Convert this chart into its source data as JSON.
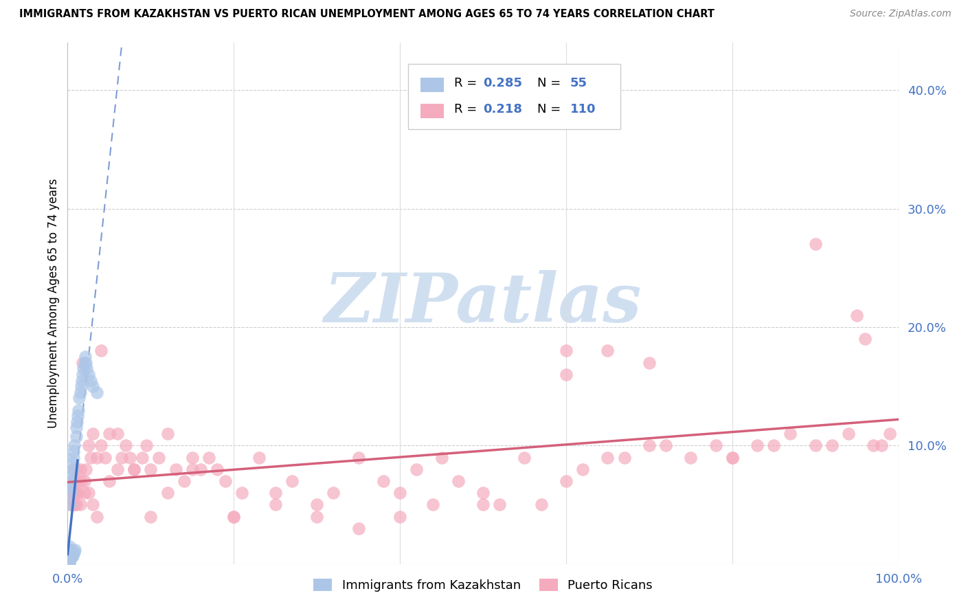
{
  "title": "IMMIGRANTS FROM KAZAKHSTAN VS PUERTO RICAN UNEMPLOYMENT AMONG AGES 65 TO 74 YEARS CORRELATION CHART",
  "source": "Source: ZipAtlas.com",
  "ylabel": "Unemployment Among Ages 65 to 74 years",
  "xlim": [
    0,
    1.0
  ],
  "ylim": [
    0,
    0.44
  ],
  "xticks": [
    0.0,
    1.0
  ],
  "xticklabels": [
    "0.0%",
    "100.0%"
  ],
  "ytick_positions": [
    0.1,
    0.2,
    0.3,
    0.4
  ],
  "ytick_labels": [
    "10.0%",
    "20.0%",
    "30.0%",
    "40.0%"
  ],
  "blue_R": 0.285,
  "blue_N": 55,
  "pink_R": 0.218,
  "pink_N": 110,
  "blue_color": "#adc6e8",
  "pink_color": "#f5abbe",
  "blue_line_color": "#4472c4",
  "pink_line_color": "#d4607a",
  "legend_label_blue": "Immigrants from Kazakhstan",
  "legend_label_pink": "Puerto Ricans",
  "blue_x": [
    0.001,
    0.001,
    0.001,
    0.001,
    0.001,
    0.002,
    0.002,
    0.002,
    0.002,
    0.002,
    0.002,
    0.002,
    0.003,
    0.003,
    0.003,
    0.003,
    0.003,
    0.003,
    0.004,
    0.004,
    0.004,
    0.004,
    0.004,
    0.005,
    0.005,
    0.005,
    0.005,
    0.006,
    0.006,
    0.006,
    0.007,
    0.007,
    0.007,
    0.008,
    0.008,
    0.009,
    0.01,
    0.01,
    0.011,
    0.012,
    0.013,
    0.014,
    0.015,
    0.016,
    0.017,
    0.018,
    0.019,
    0.02,
    0.021,
    0.022,
    0.023,
    0.025,
    0.028,
    0.03,
    0.035
  ],
  "blue_y": [
    0.0,
    0.0,
    0.0,
    0.005,
    0.008,
    0.0,
    0.003,
    0.005,
    0.008,
    0.01,
    0.012,
    0.015,
    0.004,
    0.006,
    0.008,
    0.01,
    0.012,
    0.05,
    0.005,
    0.007,
    0.009,
    0.06,
    0.065,
    0.006,
    0.008,
    0.07,
    0.075,
    0.007,
    0.08,
    0.085,
    0.009,
    0.09,
    0.095,
    0.01,
    0.1,
    0.012,
    0.108,
    0.115,
    0.12,
    0.125,
    0.13,
    0.14,
    0.145,
    0.15,
    0.155,
    0.16,
    0.165,
    0.17,
    0.175,
    0.17,
    0.165,
    0.16,
    0.155,
    0.15,
    0.145
  ],
  "pink_x": [
    0.003,
    0.004,
    0.005,
    0.006,
    0.007,
    0.007,
    0.008,
    0.008,
    0.009,
    0.01,
    0.01,
    0.012,
    0.013,
    0.015,
    0.016,
    0.018,
    0.02,
    0.022,
    0.025,
    0.028,
    0.03,
    0.035,
    0.04,
    0.045,
    0.05,
    0.06,
    0.065,
    0.07,
    0.075,
    0.08,
    0.09,
    0.095,
    0.1,
    0.11,
    0.12,
    0.13,
    0.14,
    0.15,
    0.16,
    0.17,
    0.18,
    0.19,
    0.2,
    0.21,
    0.23,
    0.25,
    0.27,
    0.3,
    0.32,
    0.35,
    0.38,
    0.4,
    0.42,
    0.44,
    0.47,
    0.5,
    0.52,
    0.55,
    0.57,
    0.6,
    0.62,
    0.65,
    0.67,
    0.7,
    0.72,
    0.75,
    0.78,
    0.8,
    0.83,
    0.85,
    0.87,
    0.9,
    0.92,
    0.94,
    0.96,
    0.97,
    0.98,
    0.99,
    0.005,
    0.006,
    0.008,
    0.01,
    0.015,
    0.02,
    0.025,
    0.03,
    0.035,
    0.04,
    0.05,
    0.06,
    0.08,
    0.1,
    0.12,
    0.15,
    0.2,
    0.25,
    0.3,
    0.35,
    0.4,
    0.45,
    0.5,
    0.6,
    0.7,
    0.8,
    0.9,
    0.95,
    0.6,
    0.65
  ],
  "pink_y": [
    0.06,
    0.05,
    0.07,
    0.05,
    0.08,
    0.06,
    0.07,
    0.05,
    0.06,
    0.08,
    0.05,
    0.07,
    0.06,
    0.08,
    0.07,
    0.17,
    0.06,
    0.08,
    0.1,
    0.09,
    0.11,
    0.09,
    0.1,
    0.09,
    0.11,
    0.08,
    0.09,
    0.1,
    0.09,
    0.08,
    0.09,
    0.1,
    0.08,
    0.09,
    0.06,
    0.08,
    0.07,
    0.09,
    0.08,
    0.09,
    0.08,
    0.07,
    0.04,
    0.06,
    0.09,
    0.05,
    0.07,
    0.04,
    0.06,
    0.09,
    0.07,
    0.06,
    0.08,
    0.05,
    0.07,
    0.06,
    0.05,
    0.09,
    0.05,
    0.07,
    0.08,
    0.09,
    0.09,
    0.1,
    0.1,
    0.09,
    0.1,
    0.09,
    0.1,
    0.1,
    0.11,
    0.1,
    0.1,
    0.11,
    0.19,
    0.1,
    0.1,
    0.11,
    0.06,
    0.05,
    0.07,
    0.06,
    0.05,
    0.07,
    0.06,
    0.05,
    0.04,
    0.18,
    0.07,
    0.11,
    0.08,
    0.04,
    0.11,
    0.08,
    0.04,
    0.06,
    0.05,
    0.03,
    0.04,
    0.09,
    0.05,
    0.18,
    0.17,
    0.09,
    0.27,
    0.21,
    0.16,
    0.18
  ],
  "watermark": "ZIPatlas",
  "watermark_color": "#d0dff0"
}
